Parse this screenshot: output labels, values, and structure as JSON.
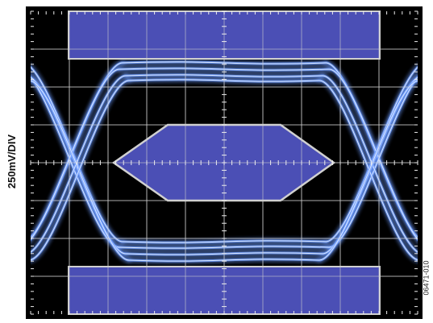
{
  "chart_data": {
    "type": "eye-diagram",
    "ylabel": "250mV/DIV",
    "xlabel": "",
    "figure_id": "06471-010",
    "grid": true,
    "divisions": {
      "x": 10,
      "y": 8
    },
    "colors": {
      "background": "#000000",
      "frame": "#000000",
      "grid": "#cfcfcf",
      "mask_fill": "#4b4fb5",
      "mask_border": "#d0d0d0",
      "trace": "#6f9dff",
      "trace_core": "#e6f0ff"
    }
  }
}
